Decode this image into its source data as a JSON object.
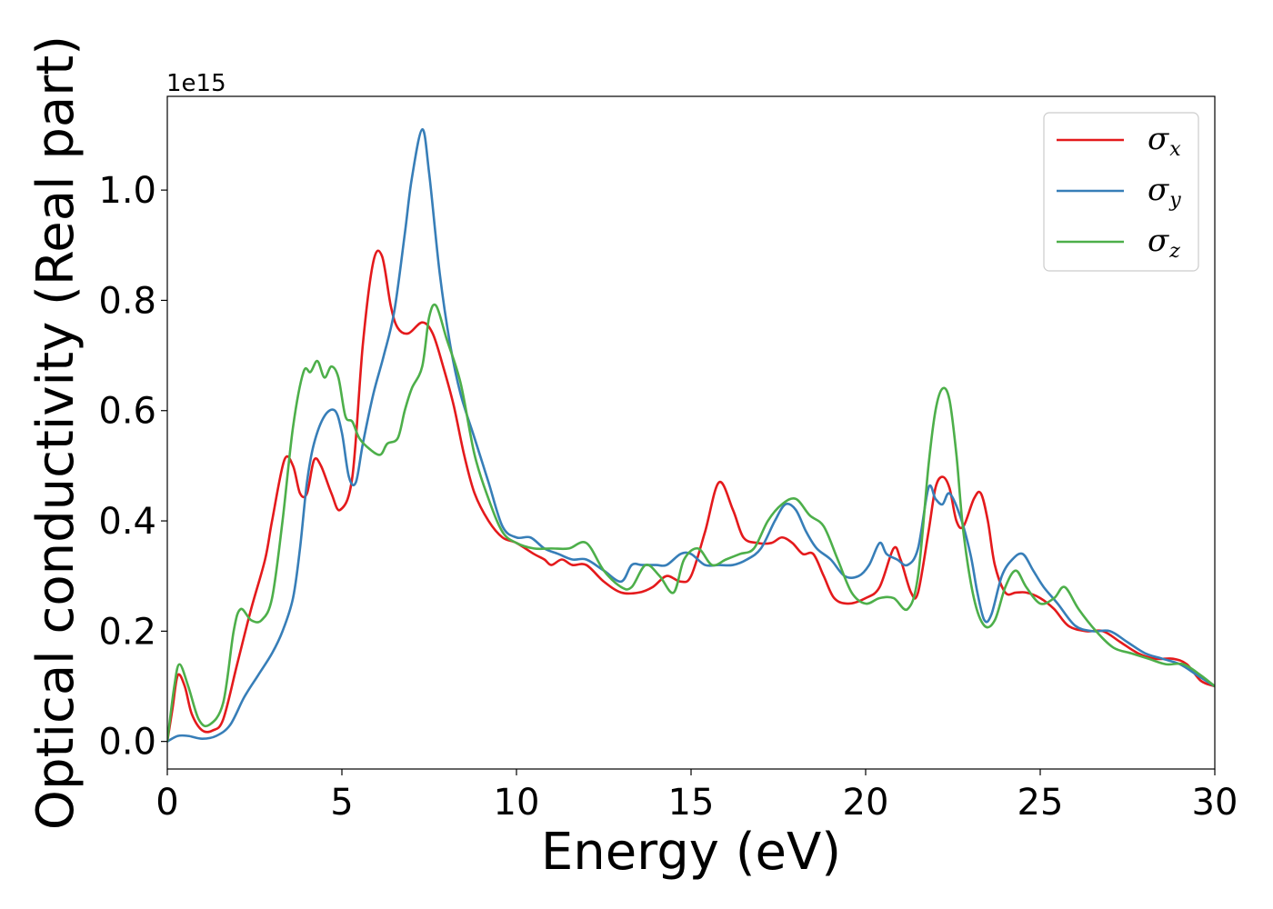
{
  "chart_data": {
    "type": "line",
    "xlabel": "Energy (eV)",
    "ylabel": "Optical conductivity (Real part)",
    "y_offset_label": "1e15",
    "xlim": [
      0,
      30
    ],
    "ylim": [
      -0.05,
      1.17
    ],
    "y_scale_exponent": 15,
    "xticks": [
      0,
      5,
      10,
      15,
      20,
      25,
      30
    ],
    "xtick_labels": [
      "0",
      "5",
      "10",
      "15",
      "20",
      "25",
      "30"
    ],
    "yticks": [
      0.0,
      0.2,
      0.4,
      0.6,
      0.8,
      1.0
    ],
    "ytick_labels": [
      "0.0",
      "0.2",
      "0.4",
      "0.6",
      "0.8",
      "1.0"
    ],
    "grid": false,
    "legend_position": "top-right",
    "series": [
      {
        "name": "σx",
        "legend_symbol": "σ",
        "legend_subscript": "x",
        "color": "#e41a1c",
        "x": [
          0,
          0.15,
          0.3,
          0.5,
          0.7,
          1.0,
          1.3,
          1.6,
          2.0,
          2.4,
          2.8,
          3.0,
          3.35,
          3.6,
          3.8,
          4.0,
          4.2,
          4.4,
          4.7,
          4.95,
          5.3,
          5.6,
          5.9,
          6.15,
          6.4,
          6.6,
          6.9,
          7.3,
          7.6,
          7.9,
          8.2,
          8.5,
          8.8,
          9.2,
          9.6,
          10.0,
          10.5,
          10.8,
          11.0,
          11.3,
          11.6,
          12.0,
          12.5,
          13.0,
          13.5,
          13.9,
          14.3,
          14.7,
          15.0,
          15.4,
          15.8,
          16.2,
          16.5,
          16.9,
          17.3,
          17.6,
          17.9,
          18.2,
          18.5,
          18.8,
          19.1,
          19.5,
          20.0,
          20.4,
          20.8,
          21.0,
          21.3,
          21.5,
          21.8,
          22.0,
          22.2,
          22.4,
          22.6,
          22.8,
          23.1,
          23.3,
          23.5,
          23.7,
          24.0,
          24.3,
          24.6,
          25.0,
          25.4,
          25.8,
          26.3,
          26.8,
          27.3,
          27.8,
          28.3,
          28.8,
          29.2,
          29.6,
          30.0
        ],
        "values": [
          0.0,
          0.06,
          0.12,
          0.1,
          0.05,
          0.02,
          0.02,
          0.04,
          0.14,
          0.24,
          0.33,
          0.4,
          0.51,
          0.5,
          0.45,
          0.45,
          0.51,
          0.5,
          0.45,
          0.42,
          0.48,
          0.72,
          0.87,
          0.88,
          0.79,
          0.75,
          0.74,
          0.76,
          0.74,
          0.68,
          0.61,
          0.52,
          0.45,
          0.4,
          0.37,
          0.36,
          0.34,
          0.33,
          0.32,
          0.33,
          0.32,
          0.32,
          0.29,
          0.27,
          0.27,
          0.28,
          0.3,
          0.29,
          0.3,
          0.38,
          0.47,
          0.42,
          0.37,
          0.36,
          0.36,
          0.37,
          0.36,
          0.34,
          0.34,
          0.3,
          0.26,
          0.25,
          0.26,
          0.28,
          0.35,
          0.33,
          0.27,
          0.27,
          0.38,
          0.46,
          0.48,
          0.46,
          0.4,
          0.39,
          0.44,
          0.45,
          0.4,
          0.32,
          0.27,
          0.27,
          0.27,
          0.26,
          0.24,
          0.21,
          0.2,
          0.2,
          0.18,
          0.16,
          0.15,
          0.15,
          0.14,
          0.11,
          0.1
        ]
      },
      {
        "name": "σy",
        "legend_symbol": "σ",
        "legend_subscript": "y",
        "color": "#377eb8",
        "x": [
          0,
          0.3,
          0.6,
          1.0,
          1.4,
          1.8,
          2.2,
          2.6,
          3.0,
          3.3,
          3.6,
          3.8,
          4.0,
          4.2,
          4.5,
          4.8,
          5.0,
          5.2,
          5.4,
          5.6,
          5.9,
          6.2,
          6.5,
          6.8,
          7.0,
          7.3,
          7.5,
          7.8,
          8.1,
          8.4,
          8.8,
          9.2,
          9.6,
          10.0,
          10.4,
          10.8,
          11.2,
          11.6,
          12.0,
          12.5,
          13.0,
          13.3,
          13.6,
          14.0,
          14.3,
          14.7,
          15.0,
          15.4,
          15.8,
          16.2,
          16.6,
          17.0,
          17.4,
          17.7,
          18.0,
          18.3,
          18.6,
          19.0,
          19.4,
          19.8,
          20.1,
          20.4,
          20.6,
          20.9,
          21.2,
          21.5,
          21.8,
          22.0,
          22.2,
          22.4,
          22.7,
          23.0,
          23.2,
          23.4,
          23.6,
          23.9,
          24.2,
          24.5,
          24.8,
          25.1,
          25.5,
          26.0,
          26.5,
          27.0,
          27.5,
          28.0,
          28.5,
          29.0,
          29.5,
          30.0
        ],
        "values": [
          0.0,
          0.01,
          0.01,
          0.005,
          0.01,
          0.03,
          0.08,
          0.12,
          0.16,
          0.2,
          0.26,
          0.35,
          0.47,
          0.54,
          0.59,
          0.6,
          0.56,
          0.48,
          0.47,
          0.54,
          0.63,
          0.7,
          0.78,
          0.92,
          1.02,
          1.11,
          1.03,
          0.85,
          0.72,
          0.63,
          0.55,
          0.47,
          0.39,
          0.37,
          0.37,
          0.35,
          0.34,
          0.33,
          0.33,
          0.31,
          0.29,
          0.32,
          0.32,
          0.32,
          0.32,
          0.34,
          0.34,
          0.32,
          0.32,
          0.32,
          0.33,
          0.35,
          0.4,
          0.43,
          0.42,
          0.38,
          0.35,
          0.33,
          0.3,
          0.3,
          0.32,
          0.36,
          0.34,
          0.33,
          0.32,
          0.35,
          0.46,
          0.44,
          0.43,
          0.45,
          0.41,
          0.34,
          0.27,
          0.22,
          0.23,
          0.3,
          0.33,
          0.34,
          0.31,
          0.28,
          0.25,
          0.21,
          0.2,
          0.2,
          0.18,
          0.16,
          0.15,
          0.14,
          0.12,
          0.1
        ]
      },
      {
        "name": "σz",
        "legend_symbol": "σ",
        "legend_subscript": "z",
        "color": "#4daf4a",
        "x": [
          0,
          0.2,
          0.35,
          0.6,
          0.9,
          1.2,
          1.6,
          1.9,
          2.1,
          2.4,
          2.7,
          3.0,
          3.3,
          3.6,
          3.9,
          4.1,
          4.3,
          4.5,
          4.7,
          4.9,
          5.1,
          5.3,
          5.5,
          5.8,
          6.1,
          6.3,
          6.6,
          6.8,
          7.0,
          7.3,
          7.5,
          7.7,
          8.0,
          8.4,
          8.8,
          9.2,
          9.6,
          10.0,
          10.5,
          11.0,
          11.5,
          12.0,
          12.5,
          13.0,
          13.3,
          13.7,
          14.1,
          14.5,
          14.8,
          15.2,
          15.6,
          16.0,
          16.4,
          16.8,
          17.2,
          17.6,
          18.0,
          18.4,
          18.8,
          19.2,
          19.6,
          20.0,
          20.4,
          20.8,
          21.2,
          21.5,
          21.8,
          22.0,
          22.2,
          22.4,
          22.6,
          22.8,
          23.1,
          23.4,
          23.7,
          24.0,
          24.3,
          24.6,
          25.0,
          25.4,
          25.7,
          26.1,
          26.6,
          27.1,
          27.6,
          28.1,
          28.6,
          29.1,
          29.6,
          30.0
        ],
        "values": [
          0.0,
          0.1,
          0.14,
          0.1,
          0.04,
          0.03,
          0.07,
          0.2,
          0.24,
          0.22,
          0.22,
          0.26,
          0.4,
          0.57,
          0.67,
          0.67,
          0.69,
          0.66,
          0.68,
          0.66,
          0.59,
          0.58,
          0.55,
          0.53,
          0.52,
          0.54,
          0.55,
          0.6,
          0.64,
          0.68,
          0.77,
          0.79,
          0.73,
          0.65,
          0.52,
          0.44,
          0.38,
          0.36,
          0.35,
          0.35,
          0.35,
          0.36,
          0.31,
          0.28,
          0.28,
          0.32,
          0.3,
          0.27,
          0.33,
          0.35,
          0.32,
          0.33,
          0.34,
          0.35,
          0.4,
          0.43,
          0.44,
          0.41,
          0.39,
          0.33,
          0.27,
          0.25,
          0.26,
          0.26,
          0.24,
          0.3,
          0.5,
          0.6,
          0.64,
          0.62,
          0.52,
          0.38,
          0.26,
          0.21,
          0.22,
          0.28,
          0.31,
          0.28,
          0.25,
          0.26,
          0.28,
          0.24,
          0.2,
          0.17,
          0.16,
          0.15,
          0.14,
          0.14,
          0.12,
          0.1
        ]
      }
    ]
  }
}
